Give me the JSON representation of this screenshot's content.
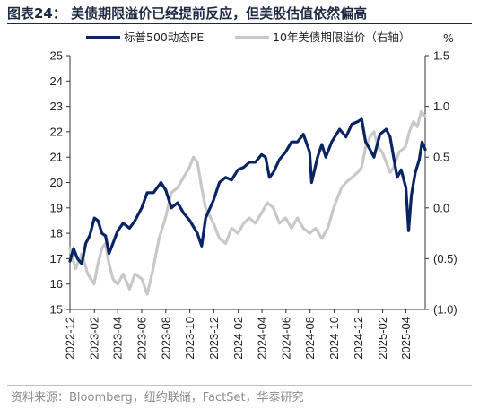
{
  "title": "图表24：  美债期限溢价已经提前反应，但美股估值依然偏高",
  "source": "资料来源：Bloomberg，纽约联储，FactSet，华泰研究",
  "colors": {
    "pe": "#0a2463",
    "premium": "#c8c8c8",
    "axis": "#333333"
  },
  "chart_data": {
    "type": "line",
    "title": "",
    "y_left": {
      "min": 15,
      "max": 25,
      "ticks": [
        15,
        16,
        17,
        18,
        19,
        20,
        21,
        22,
        23,
        24,
        25
      ]
    },
    "y_right": {
      "min": -1.0,
      "max": 1.5,
      "unit": "%",
      "ticks": [
        {
          "value": 1.5,
          "label": "1.5"
        },
        {
          "value": 1.0,
          "label": "1.0"
        },
        {
          "value": 0.5,
          "label": "0.5"
        },
        {
          "value": 0.0,
          "label": "0.0"
        },
        {
          "value": -0.5,
          "label": "(0.5)"
        },
        {
          "value": -1.0,
          "label": "(1.0)"
        }
      ]
    },
    "x": {
      "min": "2022-12-01",
      "max": "2025-05-20",
      "ticks": [
        "2022-12",
        "2023-02",
        "2023-04",
        "2023-06",
        "2023-08",
        "2023-10",
        "2023-12",
        "2024-02",
        "2024-04",
        "2024-06",
        "2024-08",
        "2024-10",
        "2024-12",
        "2025-02",
        "2025-04"
      ]
    },
    "legend_position": "top",
    "series": [
      {
        "name": "标普500动态PE",
        "axis": "left",
        "color": "#0a2463",
        "points": [
          [
            "2022-12-01",
            16.9
          ],
          [
            "2022-12-10",
            17.4
          ],
          [
            "2022-12-20",
            17.0
          ],
          [
            "2022-12-31",
            16.8
          ],
          [
            "2023-01-10",
            17.6
          ],
          [
            "2023-01-20",
            17.9
          ],
          [
            "2023-02-01",
            18.6
          ],
          [
            "2023-02-10",
            18.5
          ],
          [
            "2023-02-20",
            18.0
          ],
          [
            "2023-03-01",
            17.9
          ],
          [
            "2023-03-10",
            17.2
          ],
          [
            "2023-03-20",
            17.6
          ],
          [
            "2023-04-01",
            18.1
          ],
          [
            "2023-04-15",
            18.4
          ],
          [
            "2023-05-01",
            18.2
          ],
          [
            "2023-05-15",
            18.5
          ],
          [
            "2023-06-01",
            19.0
          ],
          [
            "2023-06-15",
            19.6
          ],
          [
            "2023-07-01",
            19.6
          ],
          [
            "2023-07-20",
            20.0
          ],
          [
            "2023-08-01",
            19.7
          ],
          [
            "2023-08-15",
            19.0
          ],
          [
            "2023-08-31",
            19.2
          ],
          [
            "2023-09-15",
            18.8
          ],
          [
            "2023-10-01",
            18.5
          ],
          [
            "2023-10-20",
            18.0
          ],
          [
            "2023-10-31",
            17.5
          ],
          [
            "2023-11-10",
            18.6
          ],
          [
            "2023-11-30",
            19.3
          ],
          [
            "2023-12-15",
            20.0
          ],
          [
            "2023-12-31",
            20.2
          ],
          [
            "2024-01-15",
            20.1
          ],
          [
            "2024-01-31",
            20.5
          ],
          [
            "2024-02-15",
            20.6
          ],
          [
            "2024-02-29",
            20.8
          ],
          [
            "2024-03-15",
            20.8
          ],
          [
            "2024-03-31",
            21.1
          ],
          [
            "2024-04-10",
            21.0
          ],
          [
            "2024-04-20",
            20.2
          ],
          [
            "2024-04-30",
            20.4
          ],
          [
            "2024-05-15",
            20.9
          ],
          [
            "2024-05-31",
            21.2
          ],
          [
            "2024-06-15",
            21.6
          ],
          [
            "2024-06-30",
            21.6
          ],
          [
            "2024-07-15",
            21.9
          ],
          [
            "2024-07-31",
            21.2
          ],
          [
            "2024-08-05",
            20.0
          ],
          [
            "2024-08-20",
            21.0
          ],
          [
            "2024-08-31",
            21.5
          ],
          [
            "2024-09-10",
            21.0
          ],
          [
            "2024-09-25",
            21.6
          ],
          [
            "2024-10-15",
            22.1
          ],
          [
            "2024-10-31",
            21.8
          ],
          [
            "2024-11-15",
            22.3
          ],
          [
            "2024-11-30",
            22.4
          ],
          [
            "2024-12-10",
            22.5
          ],
          [
            "2024-12-20",
            21.6
          ],
          [
            "2024-12-31",
            21.3
          ],
          [
            "2025-01-10",
            21.0
          ],
          [
            "2025-01-25",
            21.9
          ],
          [
            "2025-02-10",
            22.1
          ],
          [
            "2025-02-20",
            21.8
          ],
          [
            "2025-03-01",
            21.0
          ],
          [
            "2025-03-10",
            20.2
          ],
          [
            "2025-03-20",
            20.5
          ],
          [
            "2025-04-01",
            19.8
          ],
          [
            "2025-04-08",
            18.1
          ],
          [
            "2025-04-15",
            19.5
          ],
          [
            "2025-04-25",
            20.4
          ],
          [
            "2025-05-05",
            20.9
          ],
          [
            "2025-05-12",
            21.6
          ],
          [
            "2025-05-20",
            21.3
          ]
        ]
      },
      {
        "name": "10年美债期限溢价（右轴）",
        "axis": "right",
        "color": "#c8c8c8",
        "points": [
          [
            "2022-12-01",
            -0.4
          ],
          [
            "2022-12-15",
            -0.6
          ],
          [
            "2022-12-31",
            -0.45
          ],
          [
            "2023-01-15",
            -0.65
          ],
          [
            "2023-01-31",
            -0.75
          ],
          [
            "2023-02-10",
            -0.55
          ],
          [
            "2023-02-20",
            -0.4
          ],
          [
            "2023-03-01",
            -0.35
          ],
          [
            "2023-03-10",
            -0.55
          ],
          [
            "2023-03-20",
            -0.7
          ],
          [
            "2023-04-01",
            -0.75
          ],
          [
            "2023-04-15",
            -0.65
          ],
          [
            "2023-05-01",
            -0.8
          ],
          [
            "2023-05-15",
            -0.65
          ],
          [
            "2023-06-01",
            -0.7
          ],
          [
            "2023-06-15",
            -0.85
          ],
          [
            "2023-06-30",
            -0.6
          ],
          [
            "2023-07-15",
            -0.3
          ],
          [
            "2023-07-31",
            -0.1
          ],
          [
            "2023-08-15",
            0.15
          ],
          [
            "2023-08-31",
            0.2
          ],
          [
            "2023-09-15",
            0.3
          ],
          [
            "2023-09-30",
            0.4
          ],
          [
            "2023-10-10",
            0.5
          ],
          [
            "2023-10-20",
            0.45
          ],
          [
            "2023-10-31",
            0.2
          ],
          [
            "2023-11-10",
            0.0
          ],
          [
            "2023-11-30",
            -0.15
          ],
          [
            "2023-12-15",
            -0.3
          ],
          [
            "2023-12-31",
            -0.35
          ],
          [
            "2024-01-15",
            -0.2
          ],
          [
            "2024-01-31",
            -0.25
          ],
          [
            "2024-02-15",
            -0.15
          ],
          [
            "2024-02-29",
            -0.1
          ],
          [
            "2024-03-15",
            -0.15
          ],
          [
            "2024-03-31",
            -0.05
          ],
          [
            "2024-04-15",
            0.05
          ],
          [
            "2024-04-30",
            0.0
          ],
          [
            "2024-05-15",
            -0.15
          ],
          [
            "2024-05-31",
            -0.1
          ],
          [
            "2024-06-15",
            -0.2
          ],
          [
            "2024-06-30",
            -0.1
          ],
          [
            "2024-07-15",
            -0.2
          ],
          [
            "2024-07-31",
            -0.25
          ],
          [
            "2024-08-15",
            -0.2
          ],
          [
            "2024-08-31",
            -0.3
          ],
          [
            "2024-09-15",
            -0.2
          ],
          [
            "2024-09-30",
            0.0
          ],
          [
            "2024-10-10",
            0.1
          ],
          [
            "2024-10-20",
            0.2
          ],
          [
            "2024-10-31",
            0.25
          ],
          [
            "2024-11-15",
            0.3
          ],
          [
            "2024-11-30",
            0.35
          ],
          [
            "2024-12-10",
            0.4
          ],
          [
            "2024-12-20",
            0.6
          ],
          [
            "2024-12-31",
            0.7
          ],
          [
            "2025-01-10",
            0.75
          ],
          [
            "2025-01-20",
            0.6
          ],
          [
            "2025-01-31",
            0.55
          ],
          [
            "2025-02-10",
            0.45
          ],
          [
            "2025-02-20",
            0.35
          ],
          [
            "2025-03-01",
            0.4
          ],
          [
            "2025-03-15",
            0.55
          ],
          [
            "2025-03-31",
            0.6
          ],
          [
            "2025-04-10",
            0.75
          ],
          [
            "2025-04-20",
            0.85
          ],
          [
            "2025-04-30",
            0.8
          ],
          [
            "2025-05-10",
            0.95
          ],
          [
            "2025-05-20",
            0.9
          ]
        ]
      }
    ]
  }
}
